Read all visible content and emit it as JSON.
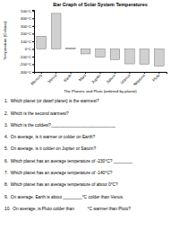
{
  "chart_data": {
    "type": "bar",
    "title": "Bar Graph of Solar System Temperatures",
    "xlabel": "The Planets and Pluto (ordered by planet)",
    "ylabel": "Temperature (Celsius)",
    "categories": [
      "Mercury",
      "Venus",
      "Earth",
      "Mars",
      "Jupiter",
      "Saturn",
      "Uranus",
      "Neptune",
      "Pluto"
    ],
    "values": [
      167,
      464,
      15,
      -65,
      -110,
      -140,
      -195,
      -200,
      -225
    ],
    "color": "#d0d0d0",
    "ylim": [
      -300,
      510
    ],
    "yticks": [
      {
        "value": -300,
        "label": "-300°C"
      },
      {
        "value": -200,
        "label": "-200°C"
      },
      {
        "value": -100,
        "label": "-100°C"
      },
      {
        "value": 0,
        "label": "0°C"
      },
      {
        "value": 100,
        "label": "100°C"
      },
      {
        "value": 200,
        "label": "200°C"
      },
      {
        "value": 300,
        "label": "300°C"
      },
      {
        "value": 400,
        "label": "400°C"
      },
      {
        "value": 500,
        "label": "500°C"
      }
    ],
    "grid": false,
    "annotations": [
      "1.  Which planet (or dwarf planet) is the warmest?",
      "2.  Which is the second warmest?",
      "3.  Which is the coldest?___________________________",
      "4.  On average, is it warmer or colder on Earth?",
      "5.  On average, is it colder on Jupiter or Saturn?",
      "6.  Which planet has an average temperature of -230°C? ________",
      "7.  Which planet has an average temperature of -140°C?",
      "8.  Which planet has an average temperature of about 0°C?",
      "9.  On average, Earth is about ________°C colder than Venus.",
      "10.  On average, is Pluto colder than           °C warmer than Pluto?"
    ]
  }
}
